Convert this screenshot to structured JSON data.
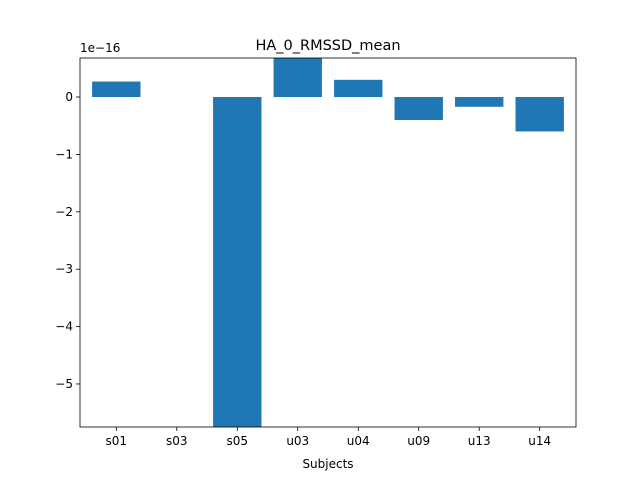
{
  "chart_data": {
    "type": "bar",
    "title": "HA_0_RMSSD_mean",
    "xlabel": "Subjects",
    "ylabel": "",
    "offset_label": "1e−16",
    "categories": [
      "s01",
      "s03",
      "s05",
      "u03",
      "u04",
      "u09",
      "u13",
      "u14"
    ],
    "values": [
      0.27,
      0.0,
      -5.8,
      0.68,
      0.3,
      -0.4,
      -0.17,
      -0.6
    ],
    "ylim": [
      -5.75,
      0.68
    ],
    "yticks": [
      0,
      -1,
      -2,
      -3,
      -4,
      -5
    ],
    "ytick_labels": [
      "0",
      "−1",
      "−2",
      "−3",
      "−4",
      "−5"
    ],
    "bar_color": "#1f77b4",
    "grid": false
  }
}
